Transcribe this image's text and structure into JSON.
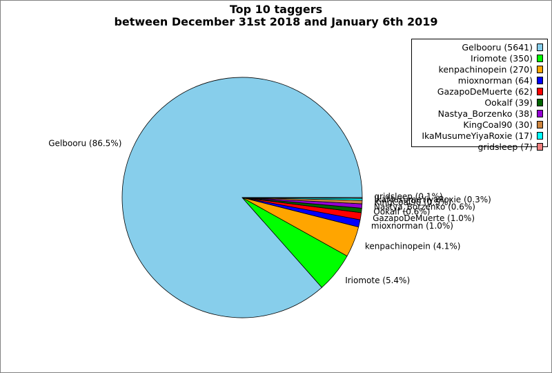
{
  "chart_data": {
    "type": "pie",
    "title": "Top 10 taggers",
    "subtitle": "between December 31st 2018 and January 6th 2019",
    "legend_position": "top-right",
    "slices": [
      {
        "name": "Gelbooru",
        "value": 5641,
        "legend": "Gelbooru (5641)",
        "label": "Gelbooru (86.5%)",
        "color": "#87ceeb"
      },
      {
        "name": "Iriomote",
        "value": 350,
        "legend": "Iriomote (350)",
        "label": "Iriomote (5.4%)",
        "color": "#00ff00"
      },
      {
        "name": "kenpachinopein",
        "value": 270,
        "legend": "kenpachinopein (270)",
        "label": "kenpachinopein (4.1%)",
        "color": "#ffa500"
      },
      {
        "name": "mioxnorman",
        "value": 64,
        "legend": "mioxnorman (64)",
        "label": "mioxnorman (1.0%)",
        "color": "#0000ff"
      },
      {
        "name": "GazapoDeMuerte",
        "value": 62,
        "legend": "GazapoDeMuerte (62)",
        "label": "GazapoDeMuerte (1.0%)",
        "color": "#ff0000"
      },
      {
        "name": "Ookalf",
        "value": 39,
        "legend": "Ookalf (39)",
        "label": "Ookalf (0.6%)",
        "color": "#006400"
      },
      {
        "name": "Nastya_Borzenko",
        "value": 38,
        "legend": "Nastya_Borzenko (38)",
        "label": "Nastya_Borzenko (0.6%)",
        "color": "#9400d3"
      },
      {
        "name": "KingCoal90",
        "value": 30,
        "legend": "KingCoal90 (30)",
        "label": "KingCoal90 (0.5%)",
        "color": "#cd853f"
      },
      {
        "name": "IkaMusumeYiyaRoxie",
        "value": 17,
        "legend": "IkaMusumeYiyaRoxie (17)",
        "label": "IkaMusumeYiyaRoxie (0.3%)",
        "color": "#00ffff"
      },
      {
        "name": "gridsleep",
        "value": 7,
        "legend": "gridsleep (7)",
        "label": "gridsleep (0.1%)",
        "color": "#f08080"
      }
    ]
  }
}
